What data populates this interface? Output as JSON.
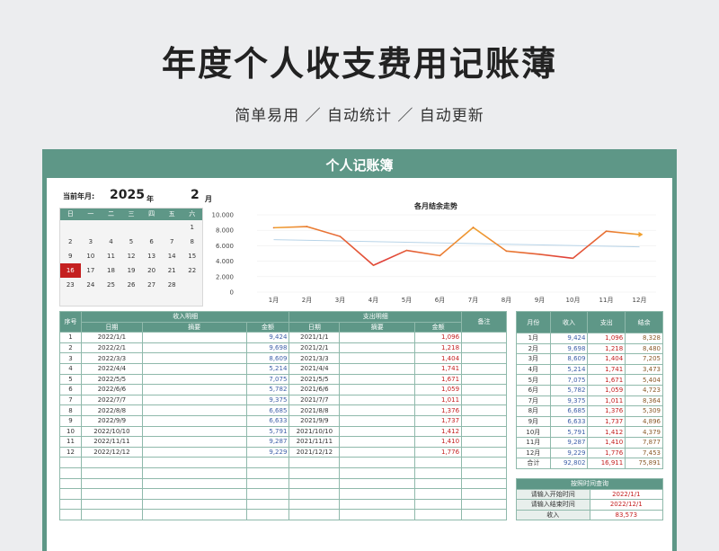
{
  "hero": {
    "title": "年度个人收支费用记账薄",
    "subtitle": "简单易用 ／ 自动统计 ／ 自动更新"
  },
  "card": {
    "title": "个人记账簿"
  },
  "calendar": {
    "label": "当前年月:",
    "year": "2025",
    "year_unit": "年",
    "month": "2",
    "month_unit": "月",
    "weekdays": [
      "日",
      "一",
      "二",
      "三",
      "四",
      "五",
      "六"
    ],
    "weeks": [
      [
        "",
        "",
        "",
        "",
        "",
        "",
        "1"
      ],
      [
        "2",
        "3",
        "4",
        "5",
        "6",
        "7",
        "8"
      ],
      [
        "9",
        "10",
        "11",
        "12",
        "13",
        "14",
        "15"
      ],
      [
        "16",
        "17",
        "18",
        "19",
        "20",
        "21",
        "22"
      ],
      [
        "23",
        "24",
        "25",
        "26",
        "27",
        "28",
        ""
      ],
      [
        "",
        "",
        "",
        "",
        "",
        "",
        ""
      ]
    ],
    "selected": "16"
  },
  "chart_data": {
    "type": "line",
    "title": "各月结余走势",
    "categories": [
      "1月",
      "2月",
      "3月",
      "4月",
      "5月",
      "6月",
      "7月",
      "8月",
      "9月",
      "10月",
      "11月",
      "12月"
    ],
    "series": [
      {
        "values": [
          8328,
          8480,
          7205,
          3473,
          5404,
          4723,
          8364,
          5309,
          4896,
          4379,
          7877,
          7453
        ]
      }
    ],
    "trendline": true,
    "yticks": [
      "0",
      "2.000",
      "4.000",
      "6.000",
      "8.000",
      "10.000"
    ],
    "ylim": [
      0,
      10000
    ],
    "colors": {
      "line_start": "#f0a030",
      "line_mid": "#e0403a",
      "trend": "#b8d4e8"
    }
  },
  "ledger": {
    "col_seq": "序号",
    "income_group": "收入明细",
    "expense_group": "支出明细",
    "remark": "备注",
    "date": "日期",
    "summary": "摘要",
    "amount": "金额",
    "rows": [
      {
        "seq": "1",
        "in_date": "2022/1/1",
        "in_amt": "9,424",
        "out_date": "2021/1/1",
        "out_amt": "1,096"
      },
      {
        "seq": "2",
        "in_date": "2022/2/1",
        "in_amt": "9,698",
        "out_date": "2021/2/1",
        "out_amt": "1,218"
      },
      {
        "seq": "3",
        "in_date": "2022/3/3",
        "in_amt": "8,609",
        "out_date": "2021/3/3",
        "out_amt": "1,404"
      },
      {
        "seq": "4",
        "in_date": "2022/4/4",
        "in_amt": "5,214",
        "out_date": "2021/4/4",
        "out_amt": "1,741"
      },
      {
        "seq": "5",
        "in_date": "2022/5/5",
        "in_amt": "7,075",
        "out_date": "2021/5/5",
        "out_amt": "1,671"
      },
      {
        "seq": "6",
        "in_date": "2022/6/6",
        "in_amt": "5,782",
        "out_date": "2021/6/6",
        "out_amt": "1,059"
      },
      {
        "seq": "7",
        "in_date": "2022/7/7",
        "in_amt": "9,375",
        "out_date": "2021/7/7",
        "out_amt": "1,011"
      },
      {
        "seq": "8",
        "in_date": "2022/8/8",
        "in_amt": "6,685",
        "out_date": "2021/8/8",
        "out_amt": "1,376"
      },
      {
        "seq": "9",
        "in_date": "2022/9/9",
        "in_amt": "6,633",
        "out_date": "2021/9/9",
        "out_amt": "1,737"
      },
      {
        "seq": "10",
        "in_date": "2022/10/10",
        "in_amt": "5,791",
        "out_date": "2021/10/10",
        "out_amt": "1,412"
      },
      {
        "seq": "11",
        "in_date": "2022/11/11",
        "in_amt": "9,287",
        "out_date": "2021/11/11",
        "out_amt": "1,410"
      },
      {
        "seq": "12",
        "in_date": "2022/12/12",
        "in_amt": "9,229",
        "out_date": "2021/12/12",
        "out_amt": "1,776"
      }
    ]
  },
  "summary": {
    "headers": [
      "月份",
      "收入",
      "支出",
      "结余"
    ],
    "rows": [
      [
        "1月",
        "9,424",
        "1,096",
        "8,328"
      ],
      [
        "2月",
        "9,698",
        "1,218",
        "8,480"
      ],
      [
        "3月",
        "8,609",
        "1,404",
        "7,205"
      ],
      [
        "4月",
        "5,214",
        "1,741",
        "3,473"
      ],
      [
        "5月",
        "7,075",
        "1,671",
        "5,404"
      ],
      [
        "6月",
        "5,782",
        "1,059",
        "4,723"
      ],
      [
        "7月",
        "9,375",
        "1,011",
        "8,364"
      ],
      [
        "8月",
        "6,685",
        "1,376",
        "5,309"
      ],
      [
        "9月",
        "6,633",
        "1,737",
        "4,896"
      ],
      [
        "10月",
        "5,791",
        "1,412",
        "4,379"
      ],
      [
        "11月",
        "9,287",
        "1,410",
        "7,877"
      ],
      [
        "12月",
        "9,229",
        "1,776",
        "7,453"
      ]
    ],
    "total": [
      "合计",
      "92,802",
      "16,911",
      "75,891"
    ]
  },
  "query": {
    "title": "按照时间查询",
    "start_label": "请输入开始时间",
    "start_value": "2022/1/1",
    "end_label": "请输入结束时间",
    "end_value": "2022/12/1",
    "income_label": "收入",
    "income_value": "83,573"
  }
}
